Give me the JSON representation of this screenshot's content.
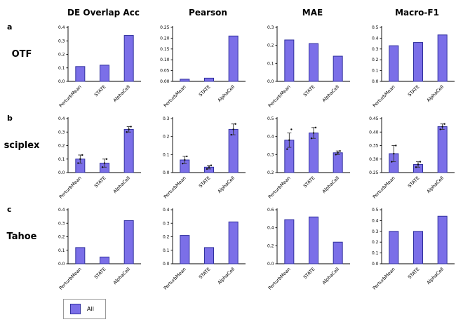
{
  "figure": {
    "panel_labels": [
      "a",
      "b",
      "c"
    ],
    "row_labels": [
      "OTF",
      "sciplex",
      "Tahoe"
    ],
    "col_titles": [
      "DE Overlap Acc",
      "Pearson",
      "MAE",
      "Macro-F1"
    ],
    "categories": [
      "PerturbMean",
      "STATE",
      "AlphaCell"
    ],
    "bar_color": "#7b6fe8",
    "bar_border": "#31319e",
    "legend": {
      "label": "All"
    }
  },
  "chart_data": [
    {
      "type": "bar",
      "panel": "a",
      "row_label": "OTF",
      "title": "DE Overlap Acc",
      "ylim": [
        0,
        0.4
      ],
      "yticks": [
        "0.0",
        "0.1",
        "0.2",
        "0.3",
        "0.4"
      ],
      "categories": [
        "PerturbMean",
        "STATE",
        "AlphaCell"
      ],
      "values": [
        0.11,
        0.12,
        0.34
      ]
    },
    {
      "type": "bar",
      "panel": "a",
      "row_label": "OTF",
      "title": "Pearson",
      "ylim": [
        0,
        0.25
      ],
      "yticks": [
        "0.00",
        "0.05",
        "0.10",
        "0.15",
        "0.20",
        "0.25"
      ],
      "categories": [
        "PerturbMean",
        "STATE",
        "AlphaCell"
      ],
      "values": [
        0.01,
        0.015,
        0.21
      ]
    },
    {
      "type": "bar",
      "panel": "a",
      "row_label": "OTF",
      "title": "MAE",
      "ylim": [
        0,
        0.3
      ],
      "yticks": [
        "0.0",
        "0.1",
        "0.2",
        "0.3"
      ],
      "categories": [
        "PerturbMean",
        "STATE",
        "AlphaCell"
      ],
      "values": [
        0.23,
        0.21,
        0.14
      ]
    },
    {
      "type": "bar",
      "panel": "a",
      "row_label": "OTF",
      "title": "Macro-F1",
      "ylim": [
        0,
        0.5
      ],
      "yticks": [
        "0.0",
        "0.1",
        "0.2",
        "0.3",
        "0.4",
        "0.5"
      ],
      "categories": [
        "PerturbMean",
        "STATE",
        "AlphaCell"
      ],
      "values": [
        0.33,
        0.36,
        0.43
      ]
    },
    {
      "type": "bar",
      "panel": "b",
      "row_label": "sciplex",
      "title": "DE Overlap Acc",
      "ylim": [
        0,
        0.4
      ],
      "yticks": [
        "0.0",
        "0.1",
        "0.2",
        "0.3",
        "0.4"
      ],
      "categories": [
        "PerturbMean",
        "STATE",
        "AlphaCell"
      ],
      "values": [
        0.1,
        0.07,
        0.32
      ],
      "errors": [
        0.03,
        0.03,
        0.02
      ],
      "points": [
        [
          0.07,
          0.1,
          0.13
        ],
        [
          0.04,
          0.07,
          0.1
        ],
        [
          0.3,
          0.32,
          0.34
        ]
      ]
    },
    {
      "type": "bar",
      "panel": "b",
      "row_label": "sciplex",
      "title": "Pearson",
      "ylim": [
        0,
        0.3
      ],
      "yticks": [
        "0.0",
        "0.1",
        "0.2",
        "0.3"
      ],
      "categories": [
        "PerturbMean",
        "STATE",
        "AlphaCell"
      ],
      "values": [
        0.07,
        0.03,
        0.24
      ],
      "errors": [
        0.02,
        0.01,
        0.03
      ],
      "points": [
        [
          0.05,
          0.07,
          0.09
        ],
        [
          0.02,
          0.03,
          0.04
        ],
        [
          0.21,
          0.24,
          0.27
        ]
      ]
    },
    {
      "type": "bar",
      "panel": "b",
      "row_label": "sciplex",
      "title": "MAE",
      "ylim": [
        0.2,
        0.5
      ],
      "yticks": [
        "0.2",
        "0.3",
        "0.4",
        "0.5"
      ],
      "categories": [
        "PerturbMean",
        "STATE",
        "AlphaCell"
      ],
      "values": [
        0.38,
        0.42,
        0.31
      ],
      "errors": [
        0.04,
        0.03,
        0.01
      ],
      "points": [
        [
          0.33,
          0.38,
          0.44
        ],
        [
          0.39,
          0.42,
          0.45
        ],
        [
          0.3,
          0.31,
          0.32
        ]
      ]
    },
    {
      "type": "bar",
      "panel": "b",
      "row_label": "sciplex",
      "title": "Macro-F1",
      "ylim": [
        0.25,
        0.45
      ],
      "yticks": [
        "0.25",
        "0.30",
        "0.35",
        "0.40",
        "0.45"
      ],
      "categories": [
        "PerturbMean",
        "STATE",
        "AlphaCell"
      ],
      "values": [
        0.32,
        0.28,
        0.42
      ],
      "errors": [
        0.03,
        0.01,
        0.01
      ],
      "points": [
        [
          0.29,
          0.32,
          0.35
        ],
        [
          0.27,
          0.28,
          0.29
        ],
        [
          0.41,
          0.42,
          0.43
        ]
      ]
    },
    {
      "type": "bar",
      "panel": "c",
      "row_label": "Tahoe",
      "title": "DE Overlap Acc",
      "ylim": [
        0,
        0.4
      ],
      "yticks": [
        "0.0",
        "0.1",
        "0.2",
        "0.3",
        "0.4"
      ],
      "categories": [
        "PerturbMean",
        "STATE",
        "AlphaCell"
      ],
      "values": [
        0.12,
        0.05,
        0.32
      ]
    },
    {
      "type": "bar",
      "panel": "c",
      "row_label": "Tahoe",
      "title": "Pearson",
      "ylim": [
        0,
        0.4
      ],
      "yticks": [
        "0.0",
        "0.1",
        "0.2",
        "0.3",
        "0.4"
      ],
      "categories": [
        "PerturbMean",
        "STATE",
        "AlphaCell"
      ],
      "values": [
        0.21,
        0.12,
        0.31
      ]
    },
    {
      "type": "bar",
      "panel": "c",
      "row_label": "Tahoe",
      "title": "MAE",
      "ylim": [
        0,
        0.6
      ],
      "yticks": [
        "0.0",
        "0.2",
        "0.4",
        "0.6"
      ],
      "categories": [
        "PerturbMean",
        "STATE",
        "AlphaCell"
      ],
      "values": [
        0.49,
        0.52,
        0.24
      ]
    },
    {
      "type": "bar",
      "panel": "c",
      "row_label": "Tahoe",
      "title": "Macro-F1",
      "ylim": [
        0,
        0.5
      ],
      "yticks": [
        "0.0",
        "0.1",
        "0.2",
        "0.3",
        "0.4",
        "0.5"
      ],
      "categories": [
        "PerturbMean",
        "STATE",
        "AlphaCell"
      ],
      "values": [
        0.3,
        0.3,
        0.44
      ]
    }
  ]
}
